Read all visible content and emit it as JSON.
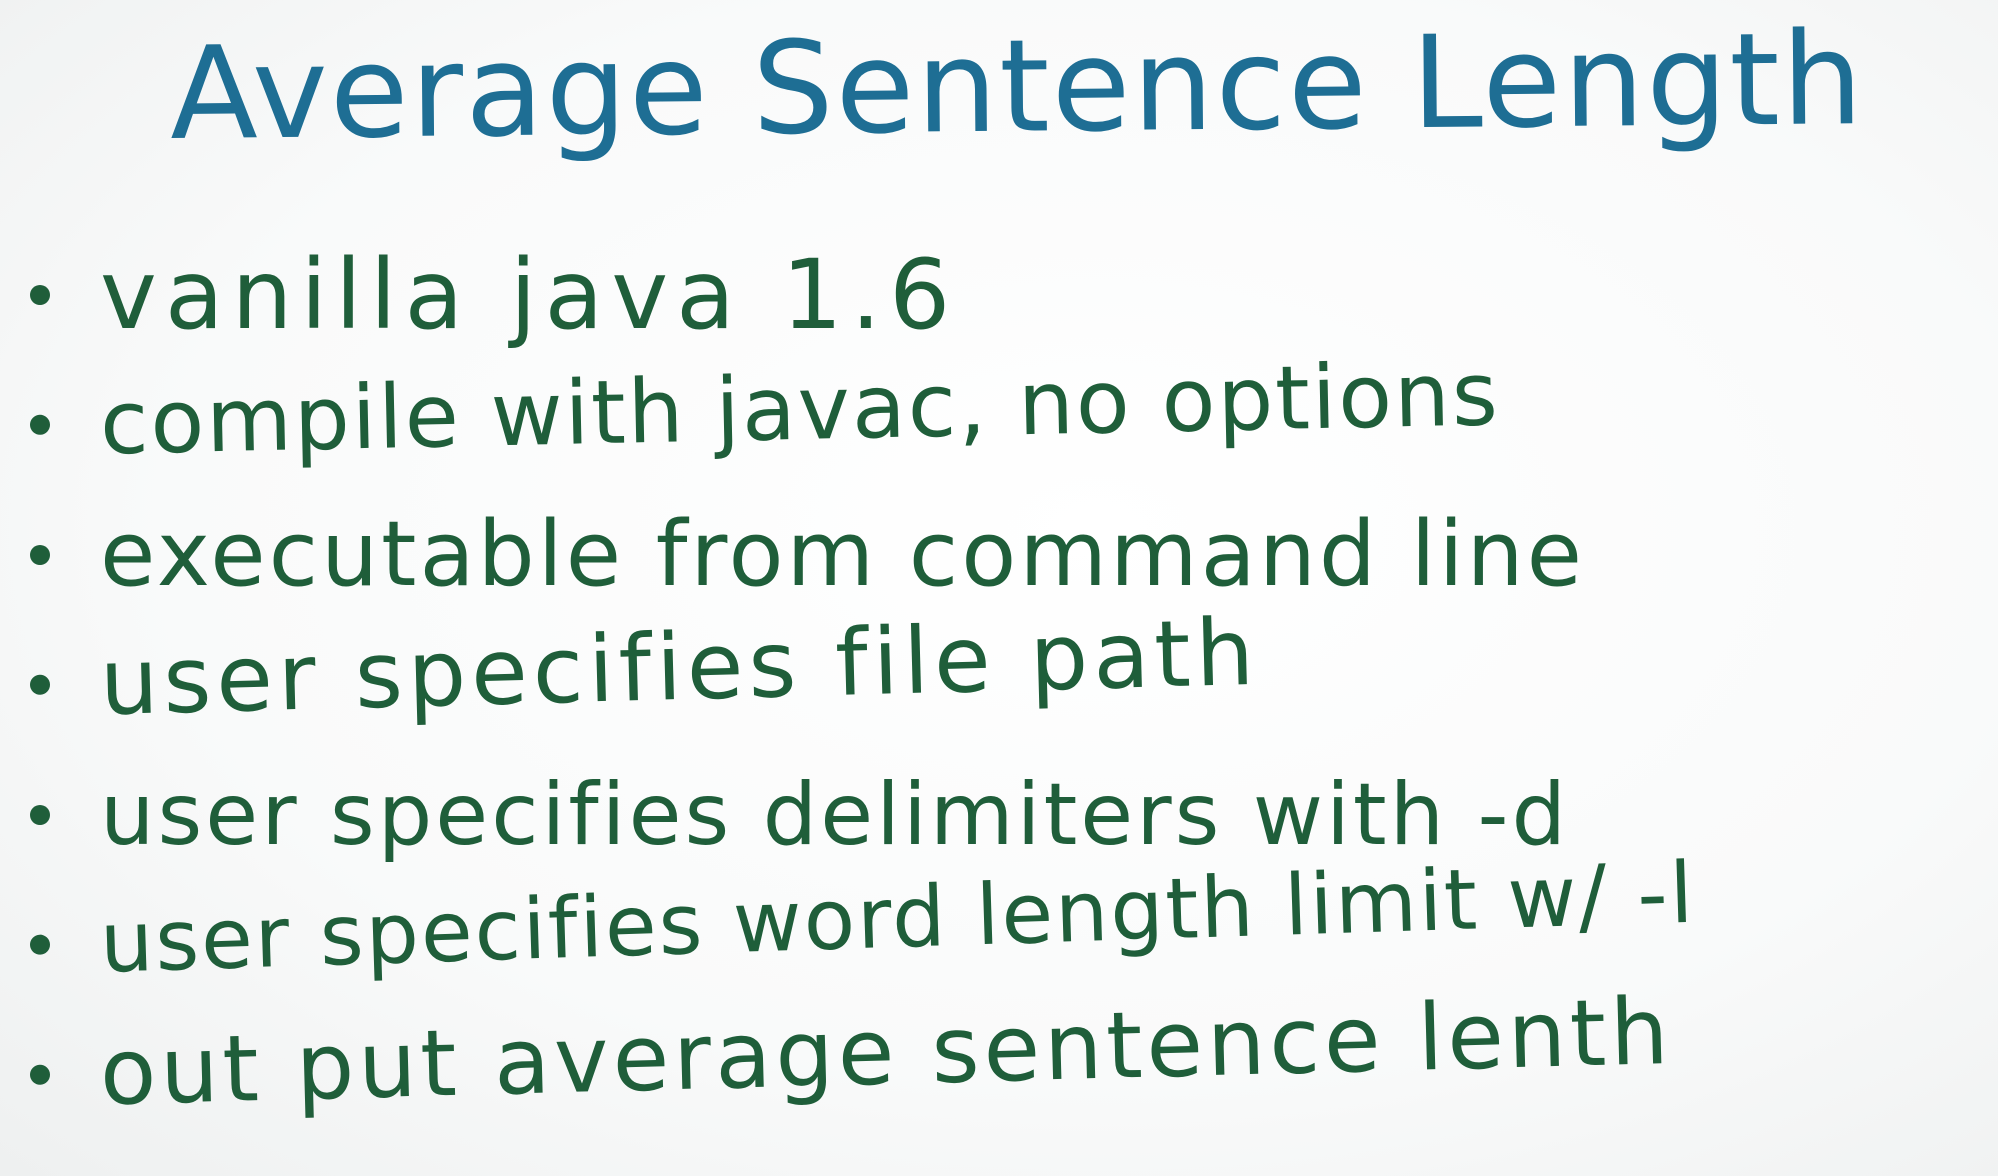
{
  "title": "Average Sentence Length",
  "bullets": [
    "vanilla java 1.6",
    "compile with javac, no options",
    "executable from command line",
    "user specifies file path",
    "user specifies delimiters with -d",
    "user specifies word length limit w/ -l",
    "out put average sentence lenth"
  ],
  "colors": {
    "title": "#1e6e94",
    "bullets": "#1f5e3a",
    "background": "#f7f8f8"
  }
}
